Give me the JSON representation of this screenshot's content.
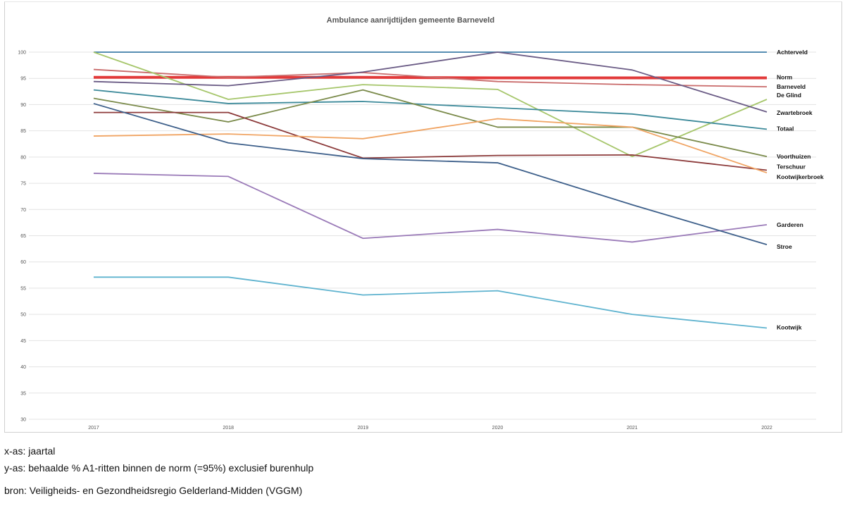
{
  "chart_data": {
    "type": "line",
    "title": "Ambulance aanrijdtijden gemeente Barneveld",
    "xlabel": "",
    "ylabel": "",
    "x": [
      "2017",
      "2018",
      "2019",
      "2020",
      "2021",
      "2022"
    ],
    "ylim": [
      30,
      100
    ],
    "yticks": [
      30,
      35,
      40,
      45,
      50,
      55,
      60,
      65,
      70,
      75,
      80,
      85,
      90,
      95,
      100
    ],
    "grid": true,
    "legend": "labels at line ends (right)",
    "series": [
      {
        "name": "Achterveld",
        "color": "#3f7ea8",
        "values": [
          100,
          100,
          100,
          100,
          100,
          100
        ],
        "label_color": "#111111"
      },
      {
        "name": "Norm",
        "color": "#e23a3a",
        "width": 4,
        "values": [
          95.2,
          95.2,
          95.2,
          95.1,
          95.1,
          95.1
        ],
        "label_color": "#d62020"
      },
      {
        "name": "Barneveld",
        "color": "#c96a6a",
        "values": [
          96.7,
          95.2,
          96.1,
          94.4,
          93.8,
          93.4
        ],
        "label_color": "#111111"
      },
      {
        "name": "De Glind",
        "color": "#a6c66b",
        "values": [
          100,
          91.0,
          93.8,
          92.9,
          80.1,
          91.0
        ],
        "label_color": "#111111"
      },
      {
        "name": "Zwartebroek",
        "color": "#6a5b85",
        "values": [
          94.4,
          93.6,
          96.2,
          100,
          96.6,
          88.6
        ],
        "label_color": "#111111"
      },
      {
        "name": "Totaal",
        "color": "#3d8a9a",
        "values": [
          92.8,
          90.2,
          90.6,
          89.4,
          88.2,
          85.3
        ],
        "label_color": "#d62020"
      },
      {
        "name": "Voorthuizen",
        "color": "#7a8a4a",
        "values": [
          91.2,
          86.7,
          92.8,
          85.7,
          85.7,
          80.1
        ],
        "label_color": "#111111"
      },
      {
        "name": "Terschuur",
        "color": "#8c3a3a",
        "values": [
          88.5,
          88.5,
          79.8,
          80.3,
          80.4,
          77.5
        ],
        "label_color": "#111111"
      },
      {
        "name": "Kootwijkerbroek",
        "color": "#f0a463",
        "values": [
          84.0,
          84.4,
          83.5,
          87.3,
          85.7,
          77.0
        ],
        "label_color": "#111111"
      },
      {
        "name": "Garderen",
        "color": "#9a7ab8",
        "values": [
          76.9,
          76.3,
          64.5,
          66.2,
          63.8,
          67.1
        ],
        "label_color": "#111111"
      },
      {
        "name": "Stroe",
        "color": "#3d5f8a",
        "values": [
          90.2,
          82.7,
          79.7,
          78.9,
          70.9,
          63.3
        ],
        "label_color": "#111111"
      },
      {
        "name": "Kootwijk",
        "color": "#5fb3cf",
        "values": [
          57.1,
          57.1,
          53.7,
          54.5,
          50.0,
          47.4
        ],
        "label_color": "#111111"
      }
    ]
  },
  "notes": {
    "x_axis": "x-as: jaartal",
    "y_axis": "y-as: behaalde % A1-ritten binnen de norm (=95%) exclusief burenhulp",
    "source": "bron: Veiligheids- en Gezondheidsregio Gelderland-Midden (VGGM)"
  }
}
